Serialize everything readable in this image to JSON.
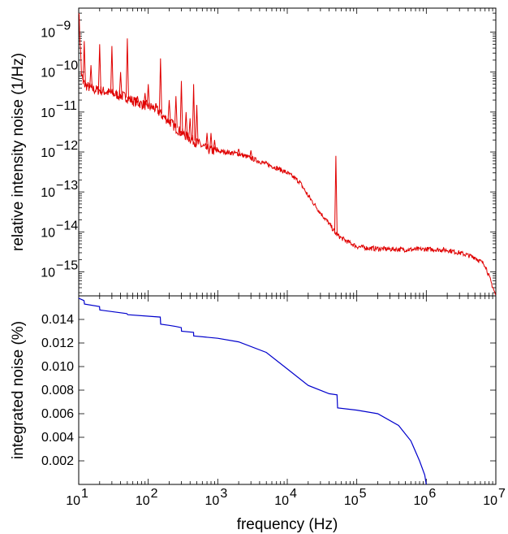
{
  "chart_data": [
    {
      "type": "line",
      "ylabel": "relative intensity noise (1/Hz)",
      "xscale": "log",
      "yscale": "log",
      "xlim": [
        10,
        10000000
      ],
      "ylim": [
        2.5e-16,
        4e-09
      ],
      "yticks": [
        {
          "value": 1e-15,
          "base": "10",
          "exp": "−15"
        },
        {
          "value": 1e-14,
          "base": "10",
          "exp": "−14"
        },
        {
          "value": 1e-13,
          "base": "10",
          "exp": "−13"
        },
        {
          "value": 1e-12,
          "base": "10",
          "exp": "−12"
        },
        {
          "value": 1e-11,
          "base": "10",
          "exp": "−11"
        },
        {
          "value": 1e-10,
          "base": "10",
          "exp": "−10"
        },
        {
          "value": 1e-09,
          "base": "10",
          "exp": "−9"
        }
      ],
      "grid": false,
      "series": [
        {
          "color": "#e00000",
          "x": [
            10,
            11,
            12,
            13,
            15,
            17,
            20,
            25,
            30,
            40,
            50,
            60,
            80,
            100,
            130,
            160,
            200,
            250,
            300,
            400,
            500,
            600,
            700,
            800,
            1000,
            1300,
            1600,
            2000,
            3000,
            5000,
            7000,
            10000,
            15000,
            20000,
            30000,
            40000,
            50000,
            60000,
            70000,
            100000,
            150000,
            200000,
            300000,
            500000,
            700000,
            1000000,
            2000000,
            3000000,
            5000000,
            7000000,
            10000000
          ],
          "y": [
            4e-09,
            8e-11,
            5e-11,
            4.5e-11,
            4e-11,
            3.6e-11,
            3.5e-11,
            3.2e-11,
            2.9e-11,
            2.6e-11,
            2.3e-11,
            1.9e-11,
            1.6e-11,
            1.4e-11,
            1.2e-11,
            8e-12,
            6e-12,
            4e-12,
            3e-12,
            2.2e-12,
            1.7e-12,
            1.4e-12,
            1.2e-12,
            1.1e-12,
            1.05e-12,
            1e-12,
            9.5e-13,
            9e-13,
            7e-13,
            5e-13,
            4e-13,
            3e-13,
            1.8e-13,
            8e-14,
            3e-14,
            1.6e-14,
            9e-15,
            7e-15,
            6e-15,
            4.3e-15,
            3.9e-15,
            3.8e-15,
            3.7e-15,
            3.6e-15,
            3.6e-15,
            3.7e-15,
            3.5e-15,
            3e-15,
            2.3e-15,
            1.5e-15,
            2.5e-16
          ]
        }
      ],
      "peaks": [
        {
          "f": 12,
          "y": 6e-10
        },
        {
          "f": 15,
          "y": 1.5e-10
        },
        {
          "f": 20,
          "y": 5e-10
        },
        {
          "f": 30,
          "y": 4.5e-10
        },
        {
          "f": 40,
          "y": 1e-10
        },
        {
          "f": 50,
          "y": 7e-10
        },
        {
          "f": 70,
          "y": 2.5e-11
        },
        {
          "f": 90,
          "y": 3e-11
        },
        {
          "f": 100,
          "y": 5e-11
        },
        {
          "f": 150,
          "y": 2.2e-10
        },
        {
          "f": 200,
          "y": 2e-11
        },
        {
          "f": 250,
          "y": 2.5e-11
        },
        {
          "f": 300,
          "y": 6e-11
        },
        {
          "f": 350,
          "y": 1e-11
        },
        {
          "f": 400,
          "y": 7e-12
        },
        {
          "f": 450,
          "y": 5e-11
        },
        {
          "f": 500,
          "y": 1.5e-11
        },
        {
          "f": 700,
          "y": 3e-12
        },
        {
          "f": 800,
          "y": 3e-12
        },
        {
          "f": 900,
          "y": 2e-12
        },
        {
          "f": 2000,
          "y": 1.2e-12
        },
        {
          "f": 3000,
          "y": 1.1e-12
        },
        {
          "f": 50000,
          "y": 8e-13
        }
      ]
    },
    {
      "type": "line",
      "xlabel": "frequency (Hz)",
      "ylabel": "integrated noise (%)",
      "xscale": "log",
      "yscale": "linear",
      "xlim": [
        10,
        10000000
      ],
      "ylim": [
        0,
        0.016
      ],
      "xticks": [
        {
          "value": 10,
          "base": "10",
          "exp": "1"
        },
        {
          "value": 100,
          "base": "10",
          "exp": "2"
        },
        {
          "value": 1000,
          "base": "10",
          "exp": "3"
        },
        {
          "value": 10000,
          "base": "10",
          "exp": "4"
        },
        {
          "value": 100000,
          "base": "10",
          "exp": "5"
        },
        {
          "value": 1000000,
          "base": "10",
          "exp": "6"
        },
        {
          "value": 10000000,
          "base": "10",
          "exp": "7"
        }
      ],
      "yticks": [
        0.002,
        0.004,
        0.006,
        0.008,
        0.01,
        0.012,
        0.014
      ],
      "ytick_labels": [
        "0.002",
        "0.004",
        "0.006",
        "0.008",
        "0.010",
        "0.012",
        "0.014"
      ],
      "grid": false,
      "series": [
        {
          "color": "#0000cc",
          "x": [
            10,
            11.9,
            12.1,
            19.9,
            20.1,
            49,
            51,
            149,
            151,
            200,
            250,
            299,
            301,
            449,
            451,
            1000,
            2000,
            5000,
            10000,
            20000,
            40000,
            52000,
            53000,
            100000,
            200000,
            400000,
            600000,
            800000,
            950000,
            1000000
          ],
          "y": [
            0.0158,
            0.0156,
            0.0153,
            0.0151,
            0.0148,
            0.0145,
            0.0144,
            0.0142,
            0.0136,
            0.0135,
            0.0134,
            0.0133,
            0.013,
            0.0129,
            0.0126,
            0.0124,
            0.0121,
            0.0112,
            0.0098,
            0.0084,
            0.0077,
            0.0076,
            0.0065,
            0.0063,
            0.006,
            0.005,
            0.0037,
            0.002,
            0.0008,
            0.0
          ]
        }
      ]
    }
  ]
}
